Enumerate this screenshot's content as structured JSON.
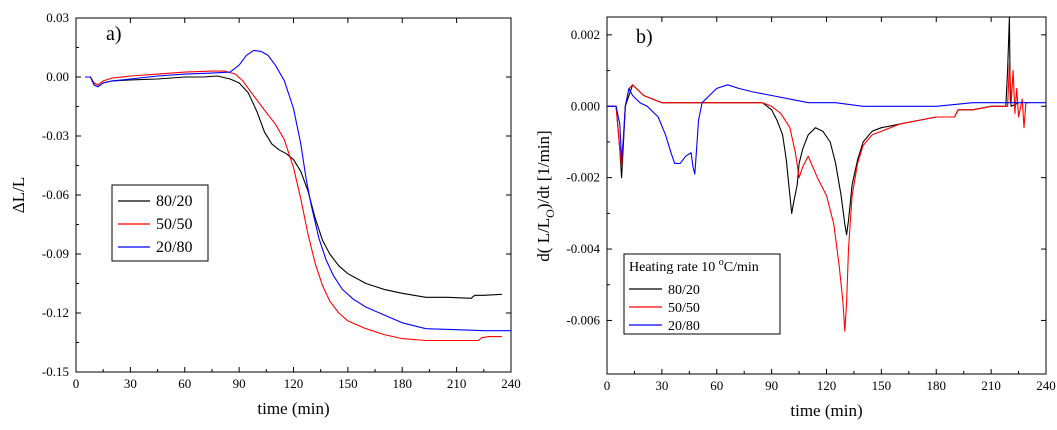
{
  "chart_data": [
    {
      "type": "line",
      "panel_label": "a)",
      "xlabel": "time (min)",
      "ylabel": "ΔL/L",
      "xlim": [
        0,
        240
      ],
      "ylim": [
        -0.15,
        0.03
      ],
      "xticks": [
        0,
        30,
        60,
        90,
        120,
        150,
        180,
        210,
        240
      ],
      "yticks": [
        -0.15,
        -0.12,
        -0.09,
        -0.06,
        -0.03,
        0.0,
        0.03
      ],
      "ytick_labels": [
        "-0.15",
        "-0.12",
        "-0.09",
        "-0.06",
        "-0.03",
        "0.00",
        "0.03"
      ],
      "legend": {
        "position": "left-middle",
        "title": ""
      },
      "series": [
        {
          "name": "80/20",
          "color": "#000000",
          "points": [
            [
              5,
              0
            ],
            [
              8,
              0
            ],
            [
              10,
              -0.004
            ],
            [
              12,
              -0.005
            ],
            [
              15,
              -0.003
            ],
            [
              20,
              -0.002
            ],
            [
              30,
              -0.0015
            ],
            [
              45,
              -0.001
            ],
            [
              60,
              0
            ],
            [
              70,
              0
            ],
            [
              78,
              0.0005
            ],
            [
              85,
              -0.001
            ],
            [
              90,
              -0.003
            ],
            [
              95,
              -0.008
            ],
            [
              100,
              -0.018
            ],
            [
              104,
              -0.028
            ],
            [
              108,
              -0.034
            ],
            [
              112,
              -0.037
            ],
            [
              116,
              -0.039
            ],
            [
              120,
              -0.042
            ],
            [
              124,
              -0.048
            ],
            [
              128,
              -0.058
            ],
            [
              132,
              -0.072
            ],
            [
              136,
              -0.083
            ],
            [
              140,
              -0.09
            ],
            [
              145,
              -0.096
            ],
            [
              150,
              -0.1
            ],
            [
              160,
              -0.105
            ],
            [
              170,
              -0.108
            ],
            [
              180,
              -0.11
            ],
            [
              193,
              -0.112
            ],
            [
              205,
              -0.112
            ],
            [
              218,
              -0.1125
            ],
            [
              220,
              -0.111
            ],
            [
              225,
              -0.111
            ],
            [
              235,
              -0.1105
            ]
          ]
        },
        {
          "name": "50/50",
          "color": "#ff0000",
          "points": [
            [
              5,
              0
            ],
            [
              8,
              0
            ],
            [
              10,
              -0.003
            ],
            [
              12,
              -0.004
            ],
            [
              15,
              -0.002
            ],
            [
              20,
              -0.0005
            ],
            [
              30,
              0.0005
            ],
            [
              45,
              0.0015
            ],
            [
              60,
              0.0025
            ],
            [
              75,
              0.003
            ],
            [
              82,
              0.003
            ],
            [
              88,
              0.0015
            ],
            [
              92,
              -0.002
            ],
            [
              96,
              -0.007
            ],
            [
              100,
              -0.012
            ],
            [
              105,
              -0.018
            ],
            [
              110,
              -0.024
            ],
            [
              115,
              -0.032
            ],
            [
              120,
              -0.046
            ],
            [
              124,
              -0.062
            ],
            [
              128,
              -0.08
            ],
            [
              132,
              -0.095
            ],
            [
              136,
              -0.106
            ],
            [
              140,
              -0.114
            ],
            [
              145,
              -0.12
            ],
            [
              150,
              -0.124
            ],
            [
              160,
              -0.128
            ],
            [
              170,
              -0.131
            ],
            [
              180,
              -0.133
            ],
            [
              193,
              -0.134
            ],
            [
              210,
              -0.134
            ],
            [
              222,
              -0.134
            ],
            [
              224,
              -0.1325
            ],
            [
              228,
              -0.132
            ],
            [
              235,
              -0.132
            ]
          ]
        },
        {
          "name": "20/80",
          "color": "#0000ff",
          "points": [
            [
              5,
              0
            ],
            [
              8,
              0
            ],
            [
              10,
              -0.004
            ],
            [
              12,
              -0.005
            ],
            [
              15,
              -0.003
            ],
            [
              20,
              -0.002
            ],
            [
              30,
              -0.001
            ],
            [
              45,
              0.0005
            ],
            [
              60,
              0.0015
            ],
            [
              75,
              0.002
            ],
            [
              85,
              0.0025
            ],
            [
              90,
              0.006
            ],
            [
              94,
              0.011
            ],
            [
              98,
              0.0135
            ],
            [
              102,
              0.013
            ],
            [
              106,
              0.011
            ],
            [
              110,
              0.006
            ],
            [
              115,
              -0.002
            ],
            [
              120,
              -0.016
            ],
            [
              124,
              -0.034
            ],
            [
              127,
              -0.052
            ],
            [
              130,
              -0.066
            ],
            [
              134,
              -0.082
            ],
            [
              138,
              -0.093
            ],
            [
              142,
              -0.101
            ],
            [
              147,
              -0.108
            ],
            [
              153,
              -0.113
            ],
            [
              160,
              -0.117
            ],
            [
              170,
              -0.121
            ],
            [
              180,
              -0.125
            ],
            [
              193,
              -0.128
            ],
            [
              210,
              -0.1285
            ],
            [
              225,
              -0.129
            ],
            [
              240,
              -0.129
            ]
          ]
        }
      ]
    },
    {
      "type": "line",
      "panel_label": "b)",
      "xlabel": "time (min)",
      "ylabel_main": "d( L/L",
      "ylabel_sub": "O",
      "ylabel_tail": ")/dt [1/min]",
      "xlim": [
        0,
        240
      ],
      "ylim": [
        -0.0075,
        0.0025
      ],
      "xticks": [
        0,
        30,
        60,
        90,
        120,
        150,
        180,
        210,
        240
      ],
      "yticks": [
        -0.006,
        -0.004,
        -0.002,
        0.0,
        0.002
      ],
      "ytick_labels": [
        "-0.006",
        "-0.004",
        "-0.002",
        "0.000",
        "0.002"
      ],
      "legend": {
        "position": "bottom-left",
        "title_main": "Heating rate 10 ",
        "title_sup": "o",
        "title_tail": "C/min"
      },
      "series": [
        {
          "name": "80/20",
          "color": "#000000",
          "points": [
            [
              0,
              0
            ],
            [
              5,
              0
            ],
            [
              7,
              -0.0012
            ],
            [
              8,
              -0.002
            ],
            [
              9,
              -0.001
            ],
            [
              10,
              0
            ],
            [
              12,
              0.0003
            ],
            [
              14,
              0.0006
            ],
            [
              16,
              0.0005
            ],
            [
              20,
              0.0003
            ],
            [
              30,
              0.0001
            ],
            [
              45,
              0.0001
            ],
            [
              60,
              0.0001
            ],
            [
              75,
              0.0001
            ],
            [
              85,
              0.0001
            ],
            [
              90,
              -0.0001
            ],
            [
              93,
              -0.0004
            ],
            [
              96,
              -0.0008
            ],
            [
              98,
              -0.0015
            ],
            [
              100,
              -0.0025
            ],
            [
              101,
              -0.003
            ],
            [
              102,
              -0.0027
            ],
            [
              104,
              -0.0022
            ],
            [
              105,
              -0.0016
            ],
            [
              107,
              -0.0012
            ],
            [
              110,
              -0.0008
            ],
            [
              114,
              -0.0006
            ],
            [
              118,
              -0.0007
            ],
            [
              122,
              -0.001
            ],
            [
              125,
              -0.0016
            ],
            [
              128,
              -0.0025
            ],
            [
              130,
              -0.0033
            ],
            [
              131,
              -0.0036
            ],
            [
              132,
              -0.0032
            ],
            [
              134,
              -0.0022
            ],
            [
              137,
              -0.0015
            ],
            [
              140,
              -0.001
            ],
            [
              145,
              -0.0007
            ],
            [
              150,
              -0.0006
            ],
            [
              160,
              -0.0005
            ],
            [
              170,
              -0.0004
            ],
            [
              180,
              -0.0003
            ],
            [
              190,
              -0.0003
            ],
            [
              192,
              -0.0001
            ],
            [
              200,
              -0.0001
            ],
            [
              210,
              0
            ],
            [
              218,
              0
            ],
            [
              219,
              0.001
            ],
            [
              220,
              0.0025
            ],
            [
              220.5,
              0.0002
            ],
            [
              221,
              0
            ],
            [
              225,
              0.0001
            ]
          ]
        },
        {
          "name": "50/50",
          "color": "#ff0000",
          "points": [
            [
              0,
              0
            ],
            [
              5,
              0
            ],
            [
              7,
              -0.0012
            ],
            [
              8,
              -0.0017
            ],
            [
              9,
              -0.0008
            ],
            [
              10,
              0
            ],
            [
              12,
              0.0005
            ],
            [
              14,
              0.0006
            ],
            [
              16,
              0.0005
            ],
            [
              20,
              0.0003
            ],
            [
              30,
              0.0001
            ],
            [
              45,
              0.0001
            ],
            [
              60,
              0.0001
            ],
            [
              75,
              0.0001
            ],
            [
              85,
              0.0001
            ],
            [
              90,
              0
            ],
            [
              95,
              -0.0002
            ],
            [
              100,
              -0.0006
            ],
            [
              103,
              -0.0013
            ],
            [
              105,
              -0.002
            ],
            [
              107,
              -0.0017
            ],
            [
              110,
              -0.0014
            ],
            [
              115,
              -0.002
            ],
            [
              120,
              -0.0025
            ],
            [
              124,
              -0.0033
            ],
            [
              127,
              -0.0045
            ],
            [
              129,
              -0.0055
            ],
            [
              130,
              -0.0063
            ],
            [
              131,
              -0.0055
            ],
            [
              132,
              -0.004
            ],
            [
              134,
              -0.0025
            ],
            [
              137,
              -0.0016
            ],
            [
              140,
              -0.0011
            ],
            [
              145,
              -0.0008
            ],
            [
              150,
              -0.0007
            ],
            [
              160,
              -0.0005
            ],
            [
              170,
              -0.0004
            ],
            [
              180,
              -0.0003
            ],
            [
              190,
              -0.0003
            ],
            [
              192,
              -0.0001
            ],
            [
              200,
              -0.0001
            ],
            [
              210,
              0
            ],
            [
              219,
              0
            ],
            [
              220,
              0.0012
            ],
            [
              221,
              0.0001
            ],
            [
              222,
              0.001
            ],
            [
              223,
              -0.0002
            ],
            [
              224,
              0.0005
            ],
            [
              225,
              -0.0003
            ],
            [
              227,
              0.0002
            ],
            [
              228,
              -0.0006
            ],
            [
              229,
              0.0001
            ],
            [
              231,
              0.0001
            ]
          ]
        },
        {
          "name": "20/80",
          "color": "#0000ff",
          "points": [
            [
              0,
              0
            ],
            [
              5,
              0
            ],
            [
              7,
              -0.0005
            ],
            [
              8,
              -0.0015
            ],
            [
              9,
              -0.0009
            ],
            [
              10,
              0
            ],
            [
              12,
              0.0005
            ],
            [
              14,
              0.0003
            ],
            [
              18,
              0.0001
            ],
            [
              22,
              0
            ],
            [
              28,
              -0.0003
            ],
            [
              32,
              -0.0008
            ],
            [
              35,
              -0.0013
            ],
            [
              37,
              -0.0016
            ],
            [
              40,
              -0.0016
            ],
            [
              43,
              -0.0014
            ],
            [
              46,
              -0.0013
            ],
            [
              47,
              -0.0017
            ],
            [
              48,
              -0.0019
            ],
            [
              49,
              -0.0012
            ],
            [
              50,
              -0.0004
            ],
            [
              52,
              0.0001
            ],
            [
              56,
              0.0003
            ],
            [
              60,
              0.0005
            ],
            [
              66,
              0.0006
            ],
            [
              72,
              0.0005
            ],
            [
              80,
              0.0004
            ],
            [
              90,
              0.0003
            ],
            [
              100,
              0.0002
            ],
            [
              110,
              0.0001
            ],
            [
              125,
              0.0001
            ],
            [
              140,
              0
            ],
            [
              160,
              0
            ],
            [
              180,
              0
            ],
            [
              200,
              0.0001
            ],
            [
              220,
              0.0001
            ],
            [
              240,
              0.0001
            ]
          ]
        }
      ]
    }
  ]
}
